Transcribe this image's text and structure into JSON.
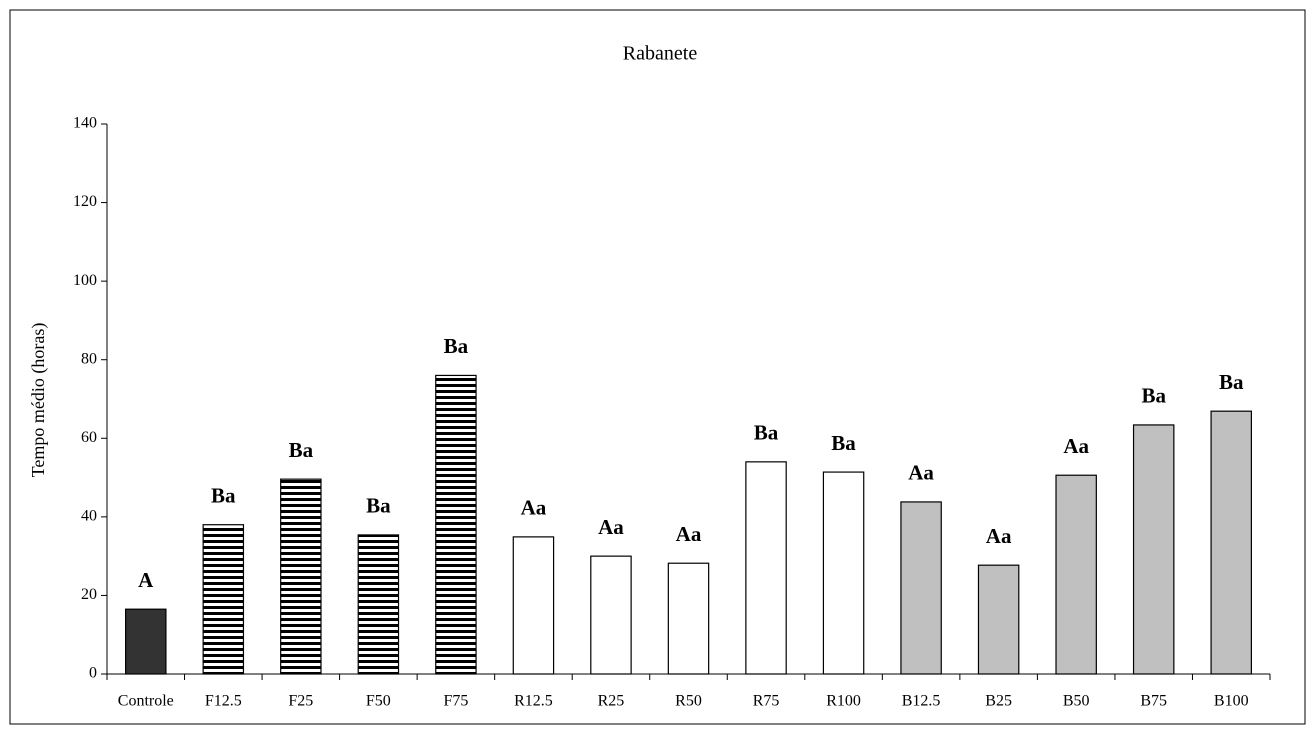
{
  "chart_data": {
    "type": "bar",
    "title": "Rabanete",
    "y_label": "Tempo médio (horas)",
    "categories": [
      "Controle",
      "F12.5",
      "F25",
      "F50",
      "F75",
      "R12.5",
      "R25",
      "R50",
      "R75",
      "R100",
      "B12.5",
      "B25",
      "B50",
      "B75",
      "B100"
    ],
    "values": [
      16.5,
      38,
      49.6,
      35.4,
      76,
      34.9,
      30,
      28.2,
      54,
      51.4,
      43.8,
      27.7,
      50.6,
      63.4,
      66.9
    ],
    "annotations": [
      "A",
      "Ba",
      "Ba",
      "Ba",
      "Ba",
      "Aa",
      "Aa",
      "Aa",
      "Ba",
      "Ba",
      "Aa",
      "Aa",
      "Aa",
      "Ba",
      "Ba"
    ],
    "fills": [
      "#333333",
      "horizontal-stripes",
      "horizontal-stripes",
      "horizontal-stripes",
      "horizontal-stripes",
      "#ffffff",
      "#ffffff",
      "#ffffff",
      "#ffffff",
      "#ffffff",
      "#c0c0c0",
      "#c0c0c0",
      "#c0c0c0",
      "#c0c0c0",
      "#c0c0c0"
    ],
    "ylim": [
      0,
      140
    ],
    "yticks": [
      0,
      20,
      40,
      60,
      80,
      100,
      120,
      140
    ],
    "grid": false
  }
}
